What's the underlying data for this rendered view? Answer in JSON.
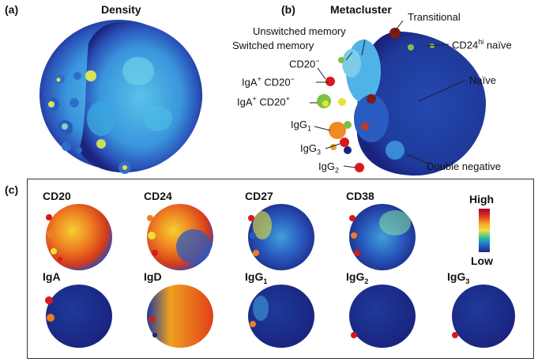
{
  "panel_a": {
    "letter": "(a)",
    "title": "Density"
  },
  "panel_b": {
    "letter": "(b)",
    "title": "Metacluster",
    "labels": {
      "transitional": "Transitional",
      "unswitched": "Unswitched memory",
      "cd24hi_pre": "CD24",
      "cd24hi_sup": "hi",
      "cd24hi_post": " naïve",
      "switched": "Switched memory",
      "cd20neg_pre": "CD20",
      "cd20neg_sup": "−",
      "naive": "Naïve",
      "iga_cd20neg_pre": "IgA",
      "iga_cd20neg_sup1": "+",
      "iga_cd20neg_mid": " CD20",
      "iga_cd20neg_sup2": "−",
      "iga_cd20pos_pre": "IgA",
      "iga_cd20pos_sup1": "+",
      "iga_cd20pos_mid": " CD20",
      "iga_cd20pos_sup2": "+",
      "igg1_pre": "IgG",
      "igg1_sub": "1",
      "igg3_pre": "IgG",
      "igg3_sub": "3",
      "igg2_pre": "IgG",
      "igg2_sub": "2",
      "double_negative": "Double negative"
    }
  },
  "panel_c": {
    "letter": "(c)",
    "markers": [
      {
        "name": "CD20",
        "sub": ""
      },
      {
        "name": "CD24",
        "sub": ""
      },
      {
        "name": "CD27",
        "sub": ""
      },
      {
        "name": "CD38",
        "sub": ""
      },
      {
        "name": "IgA",
        "sub": ""
      },
      {
        "name": "IgD",
        "sub": ""
      },
      {
        "name": "IgG",
        "sub": "1"
      },
      {
        "name": "IgG",
        "sub": "2"
      },
      {
        "name": "IgG",
        "sub": "3"
      }
    ],
    "colorbar": {
      "high": "High",
      "low": "Low"
    }
  },
  "colors": {
    "navy": "#1a237e",
    "blue": "#2a4bb5",
    "cyan": "#4fb3e8",
    "yellow": "#e8e23a",
    "orange": "#f08a24",
    "red": "#d7191c",
    "green": "#7cc242"
  }
}
